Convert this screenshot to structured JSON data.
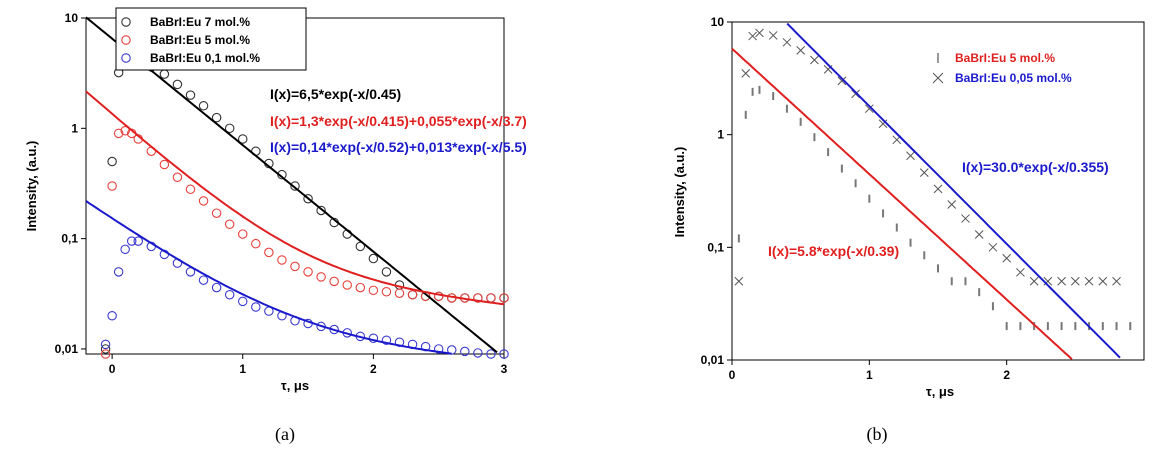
{
  "chart_data": [
    {
      "type": "scatter",
      "panel_label": "(a)",
      "xlabel": "τ, μs",
      "ylabel": "Intensity, (a.u.)",
      "xlim": [
        -0.2,
        3.0
      ],
      "ylim": [
        0.009,
        10
      ],
      "yscale": "log",
      "x_ticks": [
        0,
        1,
        2,
        3
      ],
      "x_tick_labels": [
        "0",
        "1",
        "2",
        "3"
      ],
      "y_ticks": [
        0.01,
        0.1,
        1,
        10
      ],
      "y_tick_labels": [
        "0,01",
        "0,1",
        "1",
        "10"
      ],
      "legend_position": "top-center",
      "series": [
        {
          "name": "BaBrI:Eu 7 mol.%",
          "color": "#333333",
          "marker": "open-circle",
          "x": [
            -0.05,
            0.0,
            0.05,
            0.1,
            0.15,
            0.2,
            0.3,
            0.4,
            0.5,
            0.6,
            0.7,
            0.8,
            0.9,
            1.0,
            1.1,
            1.2,
            1.3,
            1.4,
            1.5,
            1.6,
            1.7,
            1.8,
            1.9,
            2.0,
            2.1,
            2.2,
            2.3,
            2.4,
            2.5,
            2.6,
            2.7,
            2.8,
            2.9,
            3.0
          ],
          "y": [
            0.01,
            0.5,
            3.2,
            4.0,
            4.1,
            4.0,
            3.6,
            3.1,
            2.5,
            2.0,
            1.6,
            1.25,
            1.0,
            0.8,
            0.62,
            0.48,
            0.38,
            0.3,
            0.23,
            0.18,
            0.14,
            0.11,
            0.085,
            0.066,
            0.05,
            0.038,
            0.031,
            0.03,
            0.03,
            0.029,
            0.029,
            0.029,
            0.029,
            0.029
          ]
        },
        {
          "name": "BaBrI:Eu 5 mol.%",
          "color": "#e8413b",
          "marker": "open-circle",
          "x": [
            -0.05,
            0.0,
            0.05,
            0.1,
            0.15,
            0.2,
            0.3,
            0.4,
            0.5,
            0.6,
            0.7,
            0.8,
            0.9,
            1.0,
            1.1,
            1.2,
            1.3,
            1.4,
            1.5,
            1.6,
            1.7,
            1.8,
            1.9,
            2.0,
            2.1,
            2.2,
            2.3,
            2.4,
            2.5,
            2.6,
            2.7,
            2.8,
            2.9,
            3.0
          ],
          "y": [
            0.009,
            0.3,
            0.9,
            0.95,
            0.9,
            0.8,
            0.62,
            0.47,
            0.36,
            0.28,
            0.22,
            0.17,
            0.135,
            0.11,
            0.09,
            0.075,
            0.064,
            0.056,
            0.05,
            0.045,
            0.041,
            0.038,
            0.036,
            0.034,
            0.033,
            0.032,
            0.031,
            0.03,
            0.03,
            0.029,
            0.029,
            0.029,
            0.029,
            0.029
          ]
        },
        {
          "name": "BaBrI:Eu 0,1 mol.%",
          "color": "#3a3ad0",
          "marker": "open-circle",
          "x": [
            -0.05,
            0.0,
            0.05,
            0.1,
            0.15,
            0.2,
            0.3,
            0.4,
            0.5,
            0.6,
            0.7,
            0.8,
            0.9,
            1.0,
            1.1,
            1.2,
            1.3,
            1.4,
            1.5,
            1.6,
            1.7,
            1.8,
            1.9,
            2.0,
            2.1,
            2.2,
            2.3,
            2.4,
            2.5,
            2.6,
            2.7,
            2.8,
            2.9,
            3.0
          ],
          "y": [
            0.011,
            0.02,
            0.05,
            0.08,
            0.095,
            0.095,
            0.085,
            0.072,
            0.06,
            0.05,
            0.042,
            0.036,
            0.031,
            0.027,
            0.024,
            0.022,
            0.02,
            0.018,
            0.017,
            0.016,
            0.015,
            0.014,
            0.013,
            0.0125,
            0.012,
            0.0115,
            0.011,
            0.0105,
            0.01,
            0.0098,
            0.0095,
            0.0092,
            0.009,
            0.009
          ]
        }
      ],
      "fits": [
        {
          "formula": "I(x)=6,5*exp(-x/0.45)",
          "color": "#000000",
          "A": 6.5,
          "tau": 0.45,
          "B": 0,
          "tau2": 1
        },
        {
          "formula": "I(x)=1,3*exp(-x/0.415)+0,055*exp(-x/3.7)",
          "color": "#e02020",
          "A": 1.3,
          "tau": 0.415,
          "B": 0.055,
          "tau2": 3.7
        },
        {
          "formula": "I(x)=0,14*exp(-x/0.52)+0,013*exp(-x/5.5)",
          "color": "#1a1acc",
          "A": 0.14,
          "tau": 0.52,
          "B": 0.013,
          "tau2": 5.5
        }
      ]
    },
    {
      "type": "scatter",
      "panel_label": "(b)",
      "xlabel": "τ, μs",
      "ylabel": "Intensity, (a.u.)",
      "xlim": [
        0,
        3.0
      ],
      "ylim": [
        0.01,
        10
      ],
      "yscale": "log",
      "x_ticks": [
        0,
        1,
        2
      ],
      "x_tick_labels": [
        "0",
        "1",
        "2"
      ],
      "y_ticks": [
        0.01,
        0.1,
        1,
        10
      ],
      "y_tick_labels": [
        "0,01",
        "0,1",
        "1",
        "10"
      ],
      "legend_position": "top-right",
      "series": [
        {
          "name": "BaBrI:Eu 5 mol.%",
          "color": "#777777",
          "marker": "vbar",
          "label_color": "#e02020",
          "x": [
            0.05,
            0.1,
            0.15,
            0.2,
            0.3,
            0.4,
            0.5,
            0.6,
            0.7,
            0.8,
            0.9,
            1.0,
            1.1,
            1.2,
            1.3,
            1.4,
            1.5,
            1.6,
            1.7,
            1.8,
            1.9,
            2.0,
            2.1,
            2.2,
            2.3,
            2.4,
            2.5,
            2.6,
            2.7,
            2.8,
            2.9
          ],
          "y": [
            0.12,
            1.5,
            2.4,
            2.5,
            2.2,
            1.7,
            1.3,
            0.95,
            0.7,
            0.5,
            0.37,
            0.27,
            0.2,
            0.15,
            0.11,
            0.085,
            0.065,
            0.05,
            0.05,
            0.04,
            0.03,
            0.02,
            0.02,
            0.02,
            0.02,
            0.02,
            0.02,
            0.02,
            0.02,
            0.02,
            0.02
          ]
        },
        {
          "name": "BaBrI:Eu 0,05 mol.%",
          "color": "#555555",
          "marker": "x",
          "label_color": "#1a1acc",
          "x": [
            0.05,
            0.1,
            0.15,
            0.2,
            0.3,
            0.4,
            0.5,
            0.6,
            0.7,
            0.8,
            0.9,
            1.0,
            1.1,
            1.2,
            1.3,
            1.4,
            1.5,
            1.6,
            1.7,
            1.8,
            1.9,
            2.0,
            2.1,
            2.2,
            2.3,
            2.4,
            2.5,
            2.6,
            2.7,
            2.8
          ],
          "y": [
            0.05,
            3.5,
            7.5,
            8.0,
            7.6,
            6.6,
            5.6,
            4.6,
            3.8,
            3.0,
            2.3,
            1.7,
            1.25,
            0.9,
            0.65,
            0.46,
            0.33,
            0.24,
            0.18,
            0.13,
            0.1,
            0.08,
            0.06,
            0.05,
            0.05,
            0.05,
            0.05,
            0.05,
            0.05,
            0.05
          ]
        }
      ],
      "fits": [
        {
          "formula": "I(x)=30.0*exp(-x/0.355)",
          "color": "#1a1acc",
          "A": 30.0,
          "tau": 0.355,
          "B": 0,
          "tau2": 1,
          "xmin": 0.38
        },
        {
          "formula": "I(x)=5.8*exp(-x/0.39)",
          "color": "#e02020",
          "A": 5.8,
          "tau": 0.39,
          "B": 0,
          "tau2": 1,
          "xmin": 0.0
        }
      ]
    }
  ]
}
